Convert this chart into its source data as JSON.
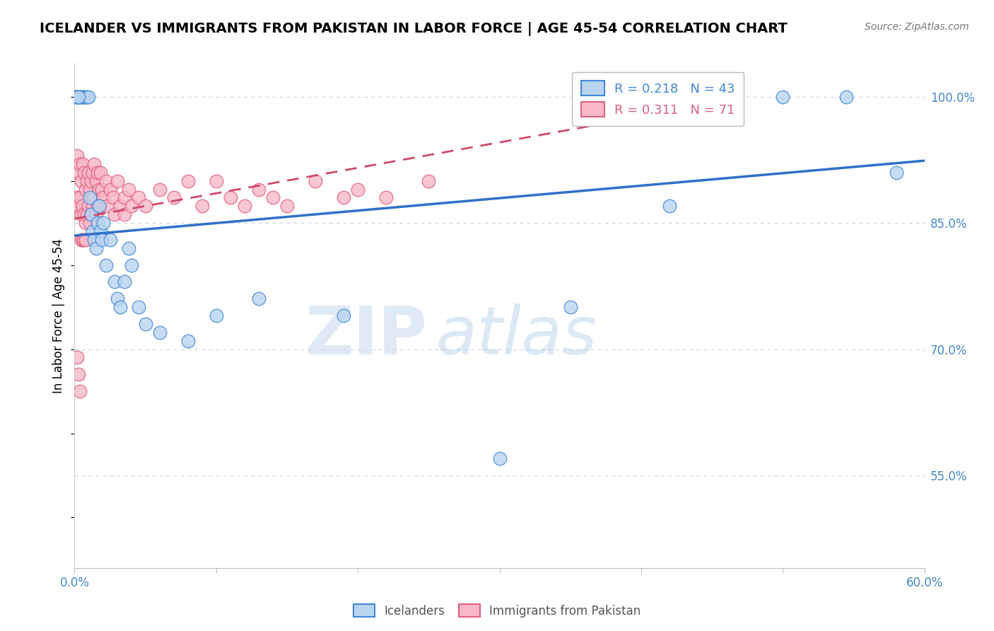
{
  "title": "ICELANDER VS IMMIGRANTS FROM PAKISTAN IN LABOR FORCE | AGE 45-54 CORRELATION CHART",
  "source": "Source: ZipAtlas.com",
  "ylabel": "In Labor Force | Age 45-54",
  "xlim": [
    0.0,
    0.6
  ],
  "ylim": [
    0.44,
    1.04
  ],
  "ytick_vals": [
    0.55,
    0.7,
    0.85,
    1.0
  ],
  "ytick_labels": [
    "55.0%",
    "70.0%",
    "85.0%",
    "100.0%"
  ],
  "xtick_vals": [
    0.0,
    0.1,
    0.2,
    0.3,
    0.4,
    0.5,
    0.6
  ],
  "xtick_labels": [
    "0.0%",
    "",
    "",
    "",
    "",
    "",
    "60.0%"
  ],
  "blue_R": 0.218,
  "blue_N": 43,
  "pink_R": 0.311,
  "pink_N": 71,
  "blue_fill": "#b8d4f0",
  "blue_edge": "#4488d8",
  "pink_fill": "#f8b8c8",
  "pink_edge": "#e06080",
  "blue_line_color": "#3070c8",
  "pink_line_color": "#d04868",
  "grid_color": "#d0d8e8",
  "axis_color": "#4488cc",
  "legend_blue_label": "Icelanders",
  "legend_pink_label": "Immigrants from Pakistan",
  "watermark_zip": "ZIP",
  "watermark_atlas": "atlas",
  "blue_x": [
    0.001,
    0.002,
    0.003,
    0.004,
    0.005,
    0.006,
    0.007,
    0.008,
    0.009,
    0.01,
    0.011,
    0.012,
    0.013,
    0.014,
    0.015,
    0.016,
    0.017,
    0.018,
    0.019,
    0.02,
    0.022,
    0.025,
    0.028,
    0.03,
    0.032,
    0.035,
    0.038,
    0.04,
    0.045,
    0.05,
    0.06,
    0.08,
    0.1,
    0.13,
    0.19,
    0.3,
    0.35,
    0.42,
    0.5,
    0.545,
    0.58,
    0.002,
    0.003
  ],
  "blue_y": [
    1.0,
    1.0,
    1.0,
    1.0,
    1.0,
    1.0,
    1.0,
    1.0,
    1.0,
    1.0,
    0.88,
    0.86,
    0.84,
    0.83,
    0.82,
    0.85,
    0.87,
    0.84,
    0.83,
    0.85,
    0.8,
    0.83,
    0.78,
    0.76,
    0.75,
    0.78,
    0.82,
    0.8,
    0.75,
    0.73,
    0.72,
    0.71,
    0.74,
    0.76,
    0.74,
    0.57,
    0.75,
    0.87,
    1.0,
    1.0,
    0.91,
    1.0,
    1.0
  ],
  "pink_x": [
    0.001,
    0.002,
    0.002,
    0.003,
    0.003,
    0.004,
    0.004,
    0.005,
    0.005,
    0.006,
    0.006,
    0.007,
    0.007,
    0.008,
    0.008,
    0.009,
    0.009,
    0.01,
    0.01,
    0.011,
    0.011,
    0.012,
    0.012,
    0.013,
    0.013,
    0.014,
    0.014,
    0.015,
    0.015,
    0.016,
    0.016,
    0.017,
    0.018,
    0.018,
    0.019,
    0.02,
    0.022,
    0.023,
    0.025,
    0.027,
    0.028,
    0.03,
    0.032,
    0.035,
    0.035,
    0.038,
    0.04,
    0.045,
    0.05,
    0.06,
    0.07,
    0.08,
    0.09,
    0.1,
    0.11,
    0.12,
    0.13,
    0.14,
    0.15,
    0.17,
    0.19,
    0.2,
    0.22,
    0.25,
    0.002,
    0.003,
    0.004,
    0.005,
    0.006,
    0.007,
    0.008
  ],
  "pink_y": [
    0.87,
    0.93,
    0.88,
    0.91,
    0.87,
    0.92,
    0.88,
    0.9,
    0.86,
    0.92,
    0.87,
    0.91,
    0.86,
    0.89,
    0.85,
    0.9,
    0.86,
    0.91,
    0.87,
    0.89,
    0.85,
    0.9,
    0.86,
    0.91,
    0.87,
    0.92,
    0.88,
    0.9,
    0.86,
    0.91,
    0.87,
    0.89,
    0.91,
    0.87,
    0.89,
    0.88,
    0.9,
    0.87,
    0.89,
    0.88,
    0.86,
    0.9,
    0.87,
    0.88,
    0.86,
    0.89,
    0.87,
    0.88,
    0.87,
    0.89,
    0.88,
    0.9,
    0.87,
    0.9,
    0.88,
    0.87,
    0.89,
    0.88,
    0.87,
    0.9,
    0.88,
    0.89,
    0.88,
    0.9,
    0.69,
    0.67,
    0.65,
    0.83,
    0.83,
    0.83,
    0.83
  ],
  "blue_trendline_x0": 0.0,
  "blue_trendline_x1": 0.6,
  "blue_trendline_y0": 0.835,
  "blue_trendline_y1": 0.924,
  "pink_trendline_x0": 0.0,
  "pink_trendline_x1": 0.38,
  "pink_trendline_y0": 0.855,
  "pink_trendline_y1": 0.97
}
